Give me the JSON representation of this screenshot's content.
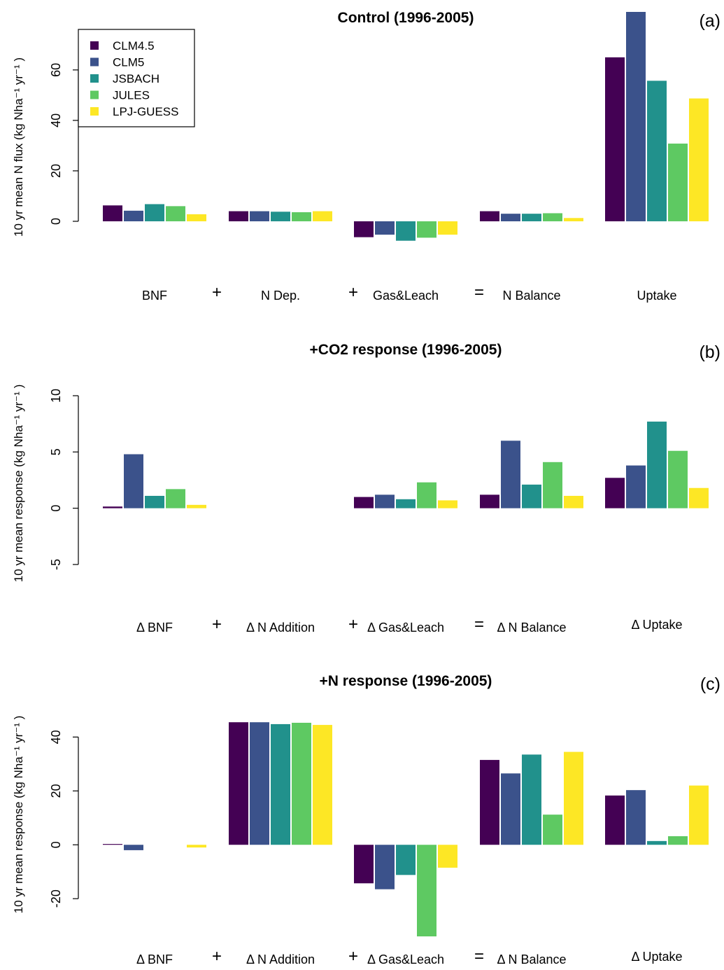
{
  "colors": [
    "#440154",
    "#3b528b",
    "#21918c",
    "#5ec962",
    "#fde725"
  ],
  "legend": [
    "CLM4.5",
    "CLM5",
    "JSBACH",
    "JULES",
    "LPJ-GUESS"
  ],
  "chart_data": [
    {
      "type": "bar",
      "title": "Control (1996-2005)",
      "panel_tag": "(a)",
      "ylabel": "10 yr mean N flux (kg Nha⁻¹ yr⁻¹ )",
      "ylim": [
        -10,
        83
      ],
      "yticks": [
        0,
        20,
        40,
        60
      ],
      "legend_position": "top-left",
      "categories": [
        "BNF",
        "N Dep.",
        "Gas&Leach",
        "N Balance",
        "Uptake"
      ],
      "operators": [
        "+",
        "+",
        "=",
        ""
      ],
      "series": [
        {
          "name": "CLM4.5",
          "values": [
            6.3,
            4.0,
            -6.3,
            4.0,
            65.0
          ]
        },
        {
          "name": "CLM5",
          "values": [
            4.2,
            4.0,
            -5.3,
            3.0,
            83.0
          ]
        },
        {
          "name": "JSBACH",
          "values": [
            6.8,
            3.8,
            -7.7,
            3.0,
            55.7
          ]
        },
        {
          "name": "JULES",
          "values": [
            6.0,
            3.6,
            -6.5,
            3.2,
            30.8
          ]
        },
        {
          "name": "LPJ-GUESS",
          "values": [
            2.8,
            4.0,
            -5.3,
            1.3,
            48.7
          ]
        }
      ]
    },
    {
      "type": "bar",
      "title": "+CO2 response (1996-2005)",
      "panel_tag": "(b)",
      "ylabel": "10 yr mean response (kg Nha⁻¹ yr⁻¹ )",
      "ylim": [
        -5,
        10
      ],
      "yticks": [
        -5,
        0,
        5,
        10
      ],
      "categories": [
        "Δ BNF",
        "Δ N Addition",
        "Δ Gas&Leach",
        "Δ N Balance",
        "Δ Uptake"
      ],
      "operators": [
        "+",
        "+",
        "=",
        ""
      ],
      "series": [
        {
          "name": "CLM4.5",
          "values": [
            0.15,
            0,
            1.0,
            1.2,
            2.7
          ]
        },
        {
          "name": "CLM5",
          "values": [
            4.8,
            0,
            1.2,
            6.0,
            3.8
          ]
        },
        {
          "name": "JSBACH",
          "values": [
            1.1,
            0,
            0.8,
            2.1,
            7.7
          ]
        },
        {
          "name": "JULES",
          "values": [
            1.7,
            0,
            2.3,
            4.1,
            5.1
          ]
        },
        {
          "name": "LPJ-GUESS",
          "values": [
            0.3,
            0,
            0.7,
            1.1,
            1.8
          ]
        }
      ]
    },
    {
      "type": "bar",
      "title": "+N response (1996-2005)",
      "panel_tag": "(c)",
      "ylabel": "10 yr mean response (kg Nha⁻¹ yr⁻¹ )",
      "ylim": [
        -34,
        44
      ],
      "yticks": [
        -20,
        0,
        20,
        40
      ],
      "categories": [
        "Δ BNF",
        "Δ N Addition",
        "Δ Gas&Leach",
        "Δ N Balance",
        "Δ Uptake"
      ],
      "operators": [
        "+",
        "+",
        "=",
        ""
      ],
      "series": [
        {
          "name": "CLM4.5",
          "values": [
            0.3,
            45.5,
            -14.3,
            31.5,
            18.3
          ]
        },
        {
          "name": "CLM5",
          "values": [
            -2.0,
            45.5,
            -16.5,
            26.5,
            20.3
          ]
        },
        {
          "name": "JSBACH",
          "values": [
            0,
            44.8,
            -11.2,
            33.5,
            1.4
          ]
        },
        {
          "name": "JULES",
          "values": [
            0,
            45.3,
            -34.0,
            11.2,
            3.2
          ]
        },
        {
          "name": "LPJ-GUESS",
          "values": [
            -1.0,
            44.5,
            -8.5,
            34.5,
            22.0
          ]
        }
      ]
    }
  ]
}
